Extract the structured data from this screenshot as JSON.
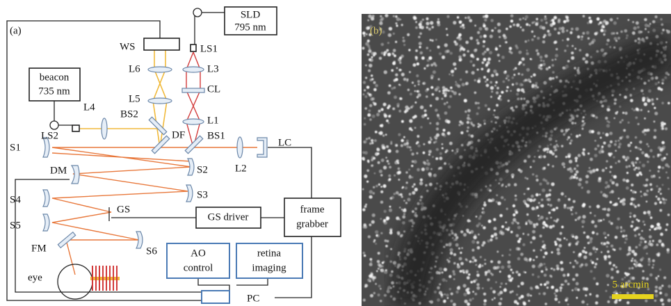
{
  "panel_a": {
    "label": "(a)",
    "boxes": {
      "sld": [
        "SLD",
        "795 nm"
      ],
      "beacon": [
        "beacon",
        "735 nm"
      ],
      "gs_driver": [
        "GS driver"
      ],
      "frame_grabber": [
        "frame",
        "grabber"
      ],
      "ao_control": [
        "AO",
        "control"
      ],
      "retina_imaging": [
        "retina",
        "imaging"
      ],
      "pc": [
        "PC"
      ]
    },
    "components": [
      "WS",
      "LS1",
      "L6",
      "L3",
      "CL",
      "L5",
      "L4",
      "BS2",
      "L1",
      "LS2",
      "DF",
      "BS1",
      "LC",
      "S1",
      "L2",
      "S2",
      "DM",
      "S3",
      "S4",
      "GS",
      "S5",
      "FM",
      "S6",
      "eye"
    ]
  },
  "panel_b": {
    "label": "(b)",
    "scale_bar": "5 arcmin"
  }
}
